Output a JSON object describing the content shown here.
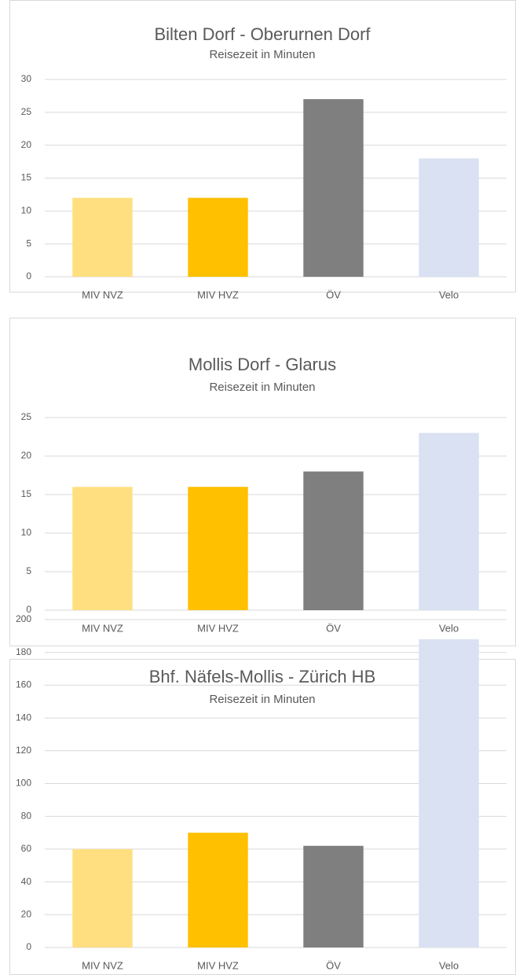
{
  "chart_data": [
    {
      "type": "bar",
      "title": "Bilten Dorf - Oberurnen Dorf",
      "subtitle": "Reisezeit in Minuten",
      "categories": [
        "MIV NVZ",
        "MIV HVZ",
        "ÖV",
        "Velo"
      ],
      "values": [
        12,
        12,
        27,
        18
      ],
      "colors": [
        "#ffdf80",
        "#ffc000",
        "#7f7f7f",
        "#d9e1f2"
      ],
      "ylim": [
        0,
        30
      ],
      "yticks": [
        0,
        5,
        10,
        15,
        20,
        25,
        30
      ],
      "grid": true
    },
    {
      "type": "bar",
      "title": "Mollis Dorf - Glarus",
      "subtitle": "Reisezeit in Minuten",
      "categories": [
        "MIV NVZ",
        "MIV HVZ",
        "ÖV",
        "Velo"
      ],
      "values": [
        16,
        16,
        18,
        23
      ],
      "colors": [
        "#ffdf80",
        "#ffc000",
        "#7f7f7f",
        "#d9e1f2"
      ],
      "ylim": [
        0,
        25
      ],
      "yticks": [
        0,
        5,
        10,
        15,
        20,
        25
      ],
      "grid": true
    },
    {
      "type": "bar",
      "title": "Bhf. Näfels-Mollis - Zürich HB",
      "subtitle": "Reisezeit in Minuten",
      "categories": [
        "MIV NVZ",
        "MIV HVZ",
        "ÖV",
        "Velo"
      ],
      "values": [
        60,
        70,
        62,
        188
      ],
      "colors": [
        "#ffdf80",
        "#ffc000",
        "#7f7f7f",
        "#d9e1f2"
      ],
      "ylim": [
        0,
        200
      ],
      "yticks": [
        0,
        20,
        40,
        60,
        80,
        100,
        120,
        140,
        160,
        180,
        200
      ],
      "grid": true
    }
  ]
}
